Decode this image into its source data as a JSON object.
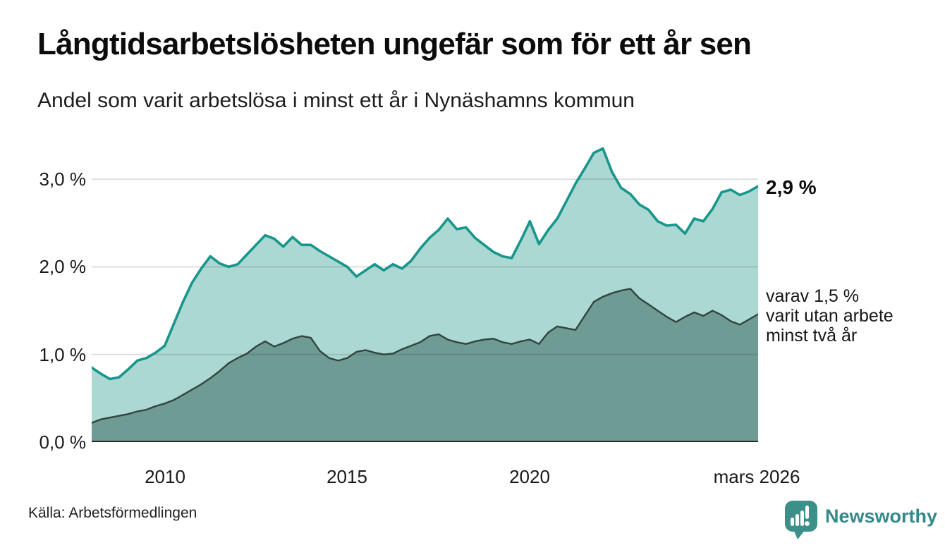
{
  "header": {
    "title": "Långtidsarbetslösheten ungefär som för ett år sen",
    "subtitle": "Andel som varit arbetslösa i minst ett år i Nynäshamns kommun"
  },
  "chart_data": {
    "type": "area",
    "title": "Långtidsarbetslösheten ungefär som för ett år sen",
    "subtitle": "Andel som varit arbetslösa i minst ett år i Nynäshamns kommun",
    "unit": "%",
    "grid": true,
    "xlim": [
      2008,
      2026.25
    ],
    "ylim": [
      0,
      3.5
    ],
    "x_years": [
      2008,
      2008.25,
      2008.5,
      2008.75,
      2009,
      2009.25,
      2009.5,
      2009.75,
      2010,
      2010.25,
      2010.5,
      2010.75,
      2011,
      2011.25,
      2011.5,
      2011.75,
      2012,
      2012.25,
      2012.5,
      2012.75,
      2013,
      2013.25,
      2013.5,
      2013.75,
      2014,
      2014.25,
      2014.5,
      2014.75,
      2015,
      2015.25,
      2015.5,
      2015.75,
      2016,
      2016.25,
      2016.5,
      2016.75,
      2017,
      2017.25,
      2017.5,
      2017.75,
      2018,
      2018.25,
      2018.5,
      2018.75,
      2019,
      2019.25,
      2019.5,
      2019.75,
      2020,
      2020.25,
      2020.5,
      2020.75,
      2021,
      2021.25,
      2021.5,
      2021.75,
      2022,
      2022.25,
      2022.5,
      2022.75,
      2023,
      2023.25,
      2023.5,
      2023.75,
      2024,
      2024.25,
      2024.5,
      2024.75,
      2025,
      2025.25,
      2025.5,
      2025.75,
      2026,
      2026.25
    ],
    "series": [
      {
        "name": "Andel som varit arbetslösa minst ett år",
        "line_color": "#18968c",
        "fill_color": "#abd8d2",
        "end_value": "2,9 %",
        "values": [
          0.85,
          0.78,
          0.72,
          0.74,
          0.83,
          0.93,
          0.96,
          1.02,
          1.1,
          1.35,
          1.6,
          1.82,
          1.98,
          2.12,
          2.04,
          2.0,
          2.03,
          2.14,
          2.25,
          2.36,
          2.32,
          2.23,
          2.34,
          2.25,
          2.25,
          2.18,
          2.12,
          2.06,
          2.0,
          1.89,
          1.96,
          2.03,
          1.96,
          2.03,
          1.98,
          2.07,
          2.21,
          2.33,
          2.42,
          2.55,
          2.43,
          2.45,
          2.33,
          2.25,
          2.17,
          2.12,
          2.1,
          2.3,
          2.52,
          2.26,
          2.42,
          2.55,
          2.75,
          2.95,
          3.12,
          3.3,
          3.35,
          3.08,
          2.9,
          2.83,
          2.71,
          2.65,
          2.52,
          2.47,
          2.48,
          2.38,
          2.55,
          2.52,
          2.66,
          2.85,
          2.88,
          2.82,
          2.86,
          2.92
        ]
      },
      {
        "name": "varav varit utan arbete minst två år",
        "line_color": "#324442",
        "fill_color": "#6f9b95",
        "end_value": "1,5 %",
        "values": [
          0.22,
          0.26,
          0.28,
          0.3,
          0.32,
          0.35,
          0.37,
          0.41,
          0.44,
          0.48,
          0.54,
          0.6,
          0.66,
          0.73,
          0.81,
          0.9,
          0.96,
          1.01,
          1.09,
          1.15,
          1.09,
          1.13,
          1.18,
          1.21,
          1.19,
          1.04,
          0.96,
          0.93,
          0.96,
          1.03,
          1.05,
          1.02,
          1.0,
          1.01,
          1.06,
          1.1,
          1.14,
          1.21,
          1.23,
          1.17,
          1.14,
          1.12,
          1.15,
          1.17,
          1.18,
          1.14,
          1.12,
          1.15,
          1.17,
          1.12,
          1.25,
          1.32,
          1.3,
          1.28,
          1.44,
          1.6,
          1.66,
          1.7,
          1.73,
          1.75,
          1.64,
          1.57,
          1.5,
          1.43,
          1.37,
          1.43,
          1.48,
          1.44,
          1.5,
          1.45,
          1.38,
          1.34,
          1.4,
          1.46
        ]
      }
    ],
    "y_ticks": [
      {
        "value": 3,
        "label": "3,0 %"
      },
      {
        "value": 2,
        "label": "2,0 %"
      },
      {
        "value": 1,
        "label": "1,0 %"
      },
      {
        "value": 0,
        "label": "0,0 %"
      }
    ],
    "x_ticks": [
      {
        "year": 2010,
        "label": "2010"
      },
      {
        "year": 2015,
        "label": "2015"
      },
      {
        "year": 2020,
        "label": "2020"
      },
      {
        "year": 2026.17,
        "label": "mars 2026"
      }
    ],
    "annotations": {
      "end_value_label": "2,9 %",
      "inner_label_lines": [
        "varav 1,5 %",
        "varit utan arbete",
        "minst två år"
      ]
    }
  },
  "footer": {
    "source": "Källa: Arbetsförmedlingen",
    "brand": {
      "name": "Newsworthy",
      "color": "#35898a",
      "logo_color": "#3d8f89",
      "logo_icon": "speech-bubble-bar-chart-exclamation"
    }
  }
}
